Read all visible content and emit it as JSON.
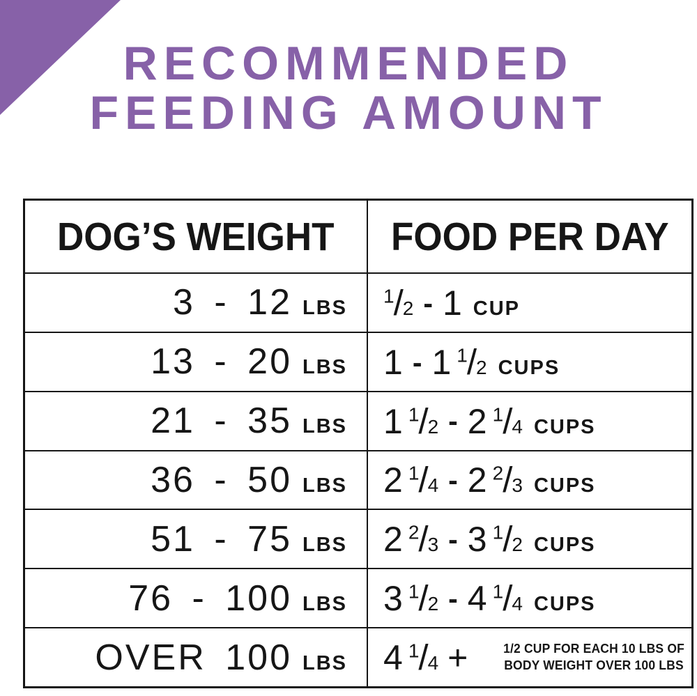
{
  "page": {
    "accent_color": "#8761A8",
    "title_line1": "RECOMMENDED",
    "title_line2": "FEEDING AMOUNT"
  },
  "chart_data": {
    "type": "table",
    "title": "RECOMMENDED FEEDING AMOUNT",
    "columns": [
      "DOG’S WEIGHT",
      "FOOD PER DAY"
    ],
    "rows": [
      {
        "dogs_weight": "3 - 12 LBS",
        "food_per_day": "1/2 - 1 CUP"
      },
      {
        "dogs_weight": "13 - 20 LBS",
        "food_per_day": "1 - 1 1/2 CUPS"
      },
      {
        "dogs_weight": "21 - 35 LBS",
        "food_per_day": "1 1/2 - 2 1/4 CUPS"
      },
      {
        "dogs_weight": "36 - 50 LBS",
        "food_per_day": "2 1/4 - 2 2/3 CUPS"
      },
      {
        "dogs_weight": "51 - 75 LBS",
        "food_per_day": "2 2/3 - 3 1/2 CUPS"
      },
      {
        "dogs_weight": "76 - 100 LBS",
        "food_per_day": "3 1/2 - 4 1/4 CUPS"
      },
      {
        "dogs_weight": "OVER 100 LBS",
        "food_per_day": "4 1/4 + 1/2 CUP FOR EACH 10 LBS OF BODY WEIGHT OVER 100 LBS"
      }
    ]
  },
  "table": {
    "headers": [
      {
        "label": "DOG’S WEIGHT"
      },
      {
        "label": "FOOD PER DAY"
      }
    ],
    "rows": [
      {
        "weight_value": "3 - 12",
        "weight_unit": "LBS",
        "food_tokens": [
          {
            "t": "frac",
            "n": "1",
            "d": "2"
          },
          {
            "t": "dash"
          },
          {
            "t": "txt",
            "v": "1"
          }
        ],
        "food_unit": "CUP",
        "note": null
      },
      {
        "weight_value": "13 - 20",
        "weight_unit": "LBS",
        "food_tokens": [
          {
            "t": "txt",
            "v": "1"
          },
          {
            "t": "dash"
          },
          {
            "t": "txt",
            "v": "1"
          },
          {
            "t": "frac",
            "n": "1",
            "d": "2"
          }
        ],
        "food_unit": "CUPS",
        "note": null
      },
      {
        "weight_value": "21 - 35",
        "weight_unit": "LBS",
        "food_tokens": [
          {
            "t": "txt",
            "v": "1"
          },
          {
            "t": "frac",
            "n": "1",
            "d": "2"
          },
          {
            "t": "dash"
          },
          {
            "t": "txt",
            "v": "2"
          },
          {
            "t": "frac",
            "n": "1",
            "d": "4"
          }
        ],
        "food_unit": "CUPS",
        "note": null
      },
      {
        "weight_value": "36 - 50",
        "weight_unit": "LBS",
        "food_tokens": [
          {
            "t": "txt",
            "v": "2"
          },
          {
            "t": "frac",
            "n": "1",
            "d": "4"
          },
          {
            "t": "dash"
          },
          {
            "t": "txt",
            "v": "2"
          },
          {
            "t": "frac",
            "n": "2",
            "d": "3"
          }
        ],
        "food_unit": "CUPS",
        "note": null
      },
      {
        "weight_value": "51 - 75",
        "weight_unit": "LBS",
        "food_tokens": [
          {
            "t": "txt",
            "v": "2"
          },
          {
            "t": "frac",
            "n": "2",
            "d": "3"
          },
          {
            "t": "dash"
          },
          {
            "t": "txt",
            "v": "3"
          },
          {
            "t": "frac",
            "n": "1",
            "d": "2"
          }
        ],
        "food_unit": "CUPS",
        "note": null
      },
      {
        "weight_value": "76 - 100",
        "weight_unit": "LBS",
        "food_tokens": [
          {
            "t": "txt",
            "v": "3"
          },
          {
            "t": "frac",
            "n": "1",
            "d": "2"
          },
          {
            "t": "dash"
          },
          {
            "t": "txt",
            "v": "4"
          },
          {
            "t": "frac",
            "n": "1",
            "d": "4"
          }
        ],
        "food_unit": "CUPS",
        "note": null
      },
      {
        "weight_value": "OVER 100",
        "weight_unit": "LBS",
        "food_tokens": [
          {
            "t": "txt",
            "v": "4"
          },
          {
            "t": "frac",
            "n": "1",
            "d": "4"
          },
          {
            "t": "plus"
          }
        ],
        "food_unit": "",
        "note": {
          "line1": "1/2 CUP FOR EACH 10 LBS OF",
          "line2": "BODY WEIGHT OVER 100 LBS"
        }
      }
    ]
  }
}
